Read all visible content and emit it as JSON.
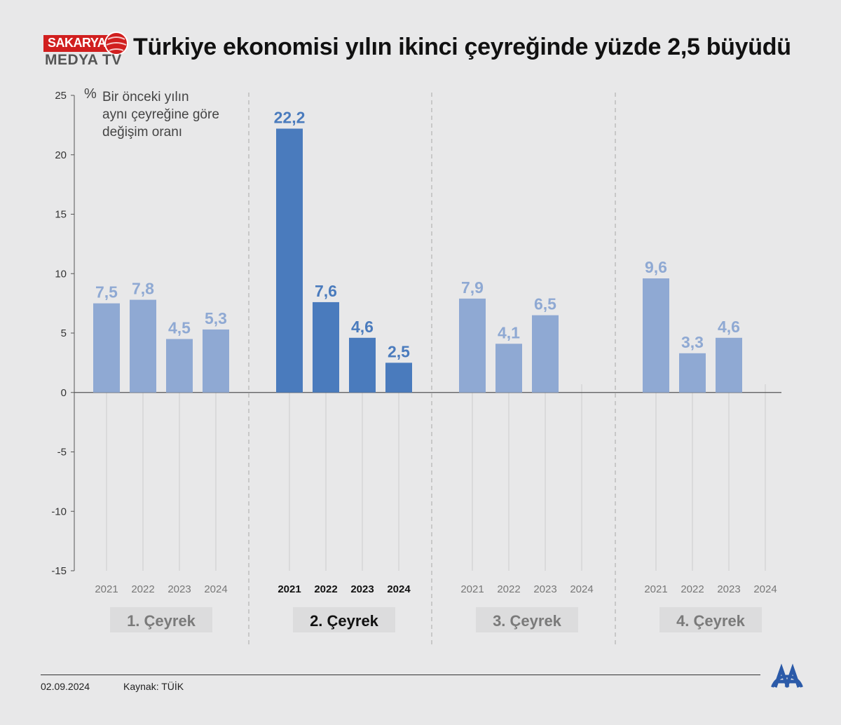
{
  "title": "Türkiye ekonomisi yılın ikinci çeyreğinde yüzde 2,5 büyüdü",
  "watermark": {
    "line1": "SAKARYA",
    "line2": "MEDYA TV"
  },
  "footer": {
    "date": "02.09.2024",
    "source": "Kaynak: TÜİK"
  },
  "colors": {
    "highlight": "#4a7bbd",
    "muted": "#8fa9d3",
    "label_box": "#dcdcdd",
    "background": "#e8e8e9"
  },
  "chart_data": {
    "type": "bar",
    "ylabel_symbol": "%",
    "ylabel": "Bir önceki yılın aynı çeyreğine göre değişim oranı",
    "ylabel_lines": [
      "Bir önceki yılın",
      "aynı çeyreğine göre",
      "değişim oranı"
    ],
    "ylim": [
      -15,
      25
    ],
    "yticks": [
      25,
      20,
      15,
      10,
      5,
      0,
      -5,
      -10,
      -15
    ],
    "years": [
      "2021",
      "2022",
      "2023",
      "2024"
    ],
    "groups": [
      {
        "label": "1. Çeyrek",
        "highlight": false,
        "values": [
          7.5,
          7.8,
          4.5,
          5.3
        ],
        "labels": [
          "7,5",
          "7,8",
          "4,5",
          "5,3"
        ]
      },
      {
        "label": "2. Çeyrek",
        "highlight": true,
        "values": [
          22.2,
          7.6,
          4.6,
          2.5
        ],
        "labels": [
          "22,2",
          "7,6",
          "4,6",
          "2,5"
        ]
      },
      {
        "label": "3. Çeyrek",
        "highlight": false,
        "values": [
          7.9,
          4.1,
          6.5,
          null
        ],
        "labels": [
          "7,9",
          "4,1",
          "6,5",
          ""
        ]
      },
      {
        "label": "4. Çeyrek",
        "highlight": false,
        "values": [
          9.6,
          3.3,
          4.6,
          null
        ],
        "labels": [
          "9,6",
          "3,3",
          "4,6",
          ""
        ]
      }
    ]
  }
}
